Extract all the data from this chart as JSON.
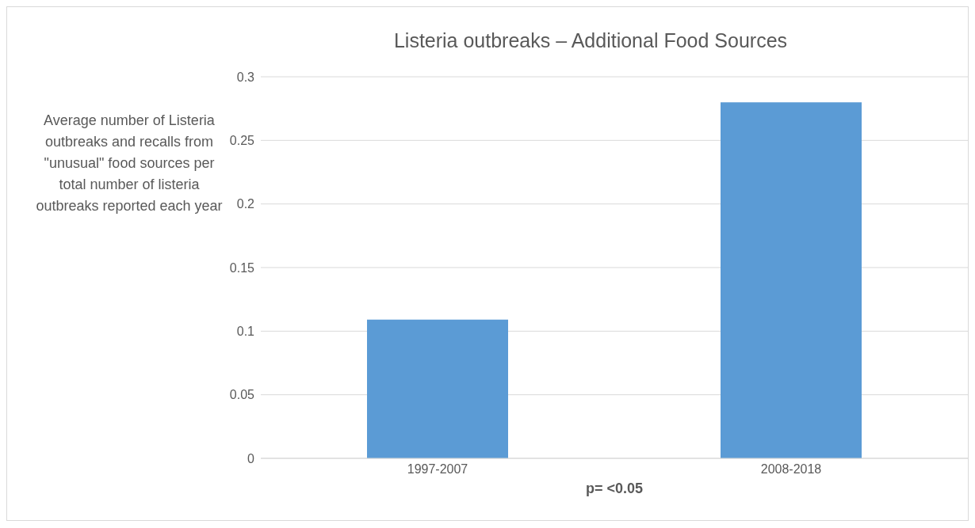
{
  "chart_data": {
    "type": "bar",
    "title": "Listeria outbreaks – Additional Food Sources",
    "ylabel": "Average number of Listeria outbreaks and recalls from \"unusual\" food sources per total number of listeria outbreaks reported each year",
    "categories": [
      "1997-2007",
      "2008-2018"
    ],
    "values": [
      0.109,
      0.28
    ],
    "color": "#5b9bd5",
    "ylim": [
      0,
      0.3
    ],
    "yticks": [
      0,
      0.05,
      0.1,
      0.15,
      0.2,
      0.25,
      0.3
    ],
    "grid": "y",
    "annotations": [
      "p= <0.05"
    ]
  }
}
